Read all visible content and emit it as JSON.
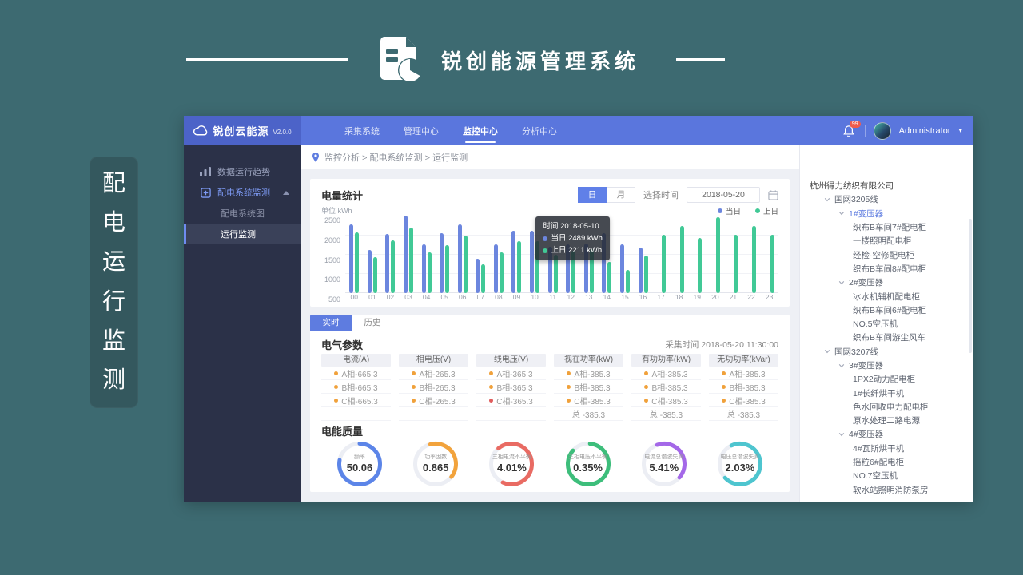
{
  "page": {
    "title": "锐创能源管理系统",
    "side_label": "配电运行监测"
  },
  "app": {
    "logo_text": "锐创云能源",
    "version": "V2.0.0",
    "nav": [
      {
        "label": "采集系统",
        "active": false
      },
      {
        "label": "管理中心",
        "active": false
      },
      {
        "label": "监控中心",
        "active": true
      },
      {
        "label": "分析中心",
        "active": false
      }
    ],
    "user": {
      "name": "Administrator",
      "badge": "99"
    },
    "sidebar": [
      {
        "label": "数据运行趋势",
        "icon": "trend-icon",
        "type": "top"
      },
      {
        "label": "配电系统监测",
        "icon": "grid-icon",
        "type": "top",
        "open": true,
        "highlight": true
      },
      {
        "label": "配电系统图",
        "type": "sub"
      },
      {
        "label": "运行监测",
        "type": "sub",
        "selected": true
      }
    ],
    "breadcrumb_text": "监控分析 > 配电系统监测 > 运行监测"
  },
  "energy_card": {
    "title": "电量统计",
    "toggle": [
      "日",
      "月"
    ],
    "toggle_active": 0,
    "date_label": "选择时间",
    "date_value": "2018-05-20",
    "unit_label": "单位  kWh",
    "legend": [
      {
        "label": "当日",
        "color": "#6C86DE"
      },
      {
        "label": "上日",
        "color": "#41C996"
      }
    ],
    "tooltip": {
      "time_label": "时间  2018-05-10",
      "rows": [
        {
          "label": "当日",
          "value": "2489 kWh",
          "color": "#6C86DE"
        },
        {
          "label": "上日",
          "value": "2211 kWh",
          "color": "#41C996"
        }
      ]
    }
  },
  "chart_data": {
    "type": "bar",
    "title": "电量统计",
    "ylabel": "kWh",
    "ylim": [
      500,
      2500
    ],
    "yticks": [
      500,
      1000,
      1500,
      2000,
      2500
    ],
    "x": [
      "00",
      "01",
      "02",
      "03",
      "04",
      "05",
      "06",
      "07",
      "08",
      "09",
      "10",
      "11",
      "12",
      "13",
      "14",
      "15",
      "16",
      "17",
      "18",
      "19",
      "20",
      "21",
      "22",
      "23"
    ],
    "series": [
      {
        "name": "当日",
        "color": "#6C86DE",
        "values": [
          2300,
          1620,
          2050,
          2520,
          1780,
          2060,
          2300,
          1400,
          1780,
          2130,
          2130,
          1700,
          1780,
          1800,
          2060,
          1780,
          1680,
          null,
          null,
          null,
          null,
          null,
          null,
          null
        ]
      },
      {
        "name": "上日",
        "color": "#41C996",
        "values": [
          2090,
          1430,
          1880,
          2200,
          1570,
          1750,
          2010,
          1260,
          1570,
          1860,
          1860,
          1500,
          1600,
          1650,
          1320,
          1100,
          1480,
          2020,
          2260,
          1930,
          2470,
          2020,
          2260,
          2030
        ]
      }
    ],
    "legend_position": "top-right",
    "grid": true
  },
  "tabs": [
    {
      "label": "实时",
      "active": true
    },
    {
      "label": "历史",
      "active": false
    }
  ],
  "electrical": {
    "title": "电气参数",
    "collect_time": "采集时间  2018-05-20  11:30:00",
    "columns": [
      "电流(A)",
      "相电压(V)",
      "线电压(V)",
      "视在功率(kW)",
      "有功功率(kW)",
      "无功功率(kVar)"
    ],
    "rows": [
      [
        {
          "t": "A相-665.3",
          "d": "#F0A13B"
        },
        {
          "t": "A相-265.3",
          "d": "#F0A13B"
        },
        {
          "t": "A相-365.3",
          "d": "#F0A13B"
        },
        {
          "t": "A相-385.3",
          "d": "#F0A13B"
        },
        {
          "t": "A相-385.3",
          "d": "#F0A13B"
        },
        {
          "t": "A相-385.3",
          "d": "#F0A13B"
        }
      ],
      [
        {
          "t": "B相-665.3",
          "d": "#F0A13B"
        },
        {
          "t": "B相-265.3",
          "d": "#F0A13B"
        },
        {
          "t": "B相-365.3",
          "d": "#F0A13B"
        },
        {
          "t": "B相-385.3",
          "d": "#F0A13B"
        },
        {
          "t": "B相-385.3",
          "d": "#F0A13B"
        },
        {
          "t": "B相-385.3",
          "d": "#F0A13B"
        }
      ],
      [
        {
          "t": "C相-665.3",
          "d": "#F0A13B"
        },
        {
          "t": "C相-265.3",
          "d": "#F0A13B"
        },
        {
          "t": "C相-365.3",
          "d": "#E05C5C"
        },
        {
          "t": "C相-385.3",
          "d": "#F0A13B"
        },
        {
          "t": "C相-385.3",
          "d": "#F0A13B"
        },
        {
          "t": "C相-385.3",
          "d": "#F0A13B"
        }
      ],
      [
        {
          "t": "",
          "d": null
        },
        {
          "t": "",
          "d": null
        },
        {
          "t": "",
          "d": null
        },
        {
          "t": "总 -385.3",
          "d": null
        },
        {
          "t": "总 -385.3",
          "d": null
        },
        {
          "t": "总 -385.3",
          "d": null
        }
      ]
    ]
  },
  "quality": {
    "title": "电能质量",
    "gauges": [
      {
        "label": "频率",
        "value": "50.06",
        "color": "#5C85E8",
        "frac": 0.78,
        "rot": 0
      },
      {
        "label": "功率因数",
        "value": "0.865",
        "color": "#F2A33C",
        "frac": 0.4,
        "rot": -15
      },
      {
        "label": "三相电流不平衡",
        "value": "4.01%",
        "color": "#E96B63",
        "frac": 0.68,
        "rot": -40
      },
      {
        "label": "三相电压不平衡",
        "value": "0.35%",
        "color": "#3DBE7B",
        "frac": 0.85,
        "rot": 5
      },
      {
        "label": "电流总谐波失真",
        "value": "5.41%",
        "color": "#A468E8",
        "frac": 0.42,
        "rot": -20
      },
      {
        "label": "电压总谐波失真",
        "value": "2.03%",
        "color": "#4EC5CF",
        "frac": 0.7,
        "rot": -25
      }
    ]
  },
  "tree": {
    "items": [
      {
        "label": "杭州得力纺织有限公司",
        "level": 0
      },
      {
        "label": "国网3205线",
        "level": 1,
        "caret": true
      },
      {
        "label": "1#变压器",
        "level": 2,
        "caret": true,
        "selected": true
      },
      {
        "label": "织布B车间7#配电柜",
        "level": 3
      },
      {
        "label": "一楼照明配电柜",
        "level": 3
      },
      {
        "label": "经检·空修配电柜",
        "level": 3
      },
      {
        "label": "织布B车间8#配电柜",
        "level": 3
      },
      {
        "label": "2#变压器",
        "level": 2,
        "caret": true
      },
      {
        "label": "冰水机辅机配电柜",
        "level": 3
      },
      {
        "label": "织布B车间6#配电柜",
        "level": 3
      },
      {
        "label": "NO.5空压机",
        "level": 3
      },
      {
        "label": "织布B车间游尘风车",
        "level": 3
      },
      {
        "label": "国网3207线",
        "level": 1,
        "caret": true
      },
      {
        "label": "3#变压器",
        "level": 2,
        "caret": true
      },
      {
        "label": "1PX2动力配电柜",
        "level": 3
      },
      {
        "label": "1#长纤烘干机",
        "level": 3
      },
      {
        "label": "色水回收电力配电柜",
        "level": 3
      },
      {
        "label": "原水处理二路电源",
        "level": 3
      },
      {
        "label": "4#变压器",
        "level": 2,
        "caret": true
      },
      {
        "label": "4#瓦斯烘干机",
        "level": 3
      },
      {
        "label": "摇粒6#配电柜",
        "level": 3
      },
      {
        "label": "NO.7空压机",
        "level": 3
      },
      {
        "label": "软水站照明消防泵房",
        "level": 3
      }
    ]
  }
}
